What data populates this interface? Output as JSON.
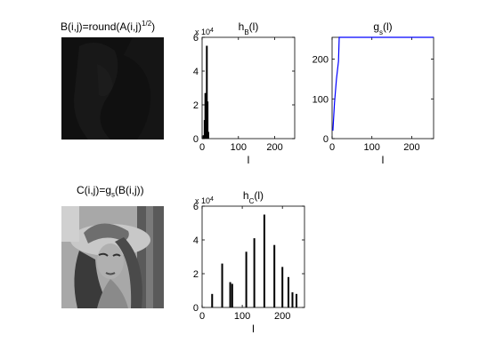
{
  "panels": {
    "img_b": {
      "title": "B(i,j)=round(A(i,j)",
      "title_sup": "1/2",
      "title_tail": ")"
    },
    "img_c": {
      "title": "C(i,j)=g",
      "title_sub": "s",
      "title_tail": "(B(i,j))"
    }
  },
  "chart_data": [
    {
      "type": "bar",
      "name": "hist_b",
      "title_main": "h",
      "title_sub": "B",
      "title_tail": "(l)",
      "multiplier_text": "x 10",
      "multiplier_exp": "4",
      "xlabel": "l",
      "xlim": [
        0,
        255
      ],
      "ylim": [
        0,
        6
      ],
      "xticks": [
        "0",
        "100",
        "200"
      ],
      "xtick_values": [
        0,
        100,
        200
      ],
      "yticks": [
        "0",
        "2",
        "4",
        "6"
      ],
      "ytick_values": [
        0,
        2,
        4,
        6
      ],
      "bars": [
        {
          "x": 4,
          "y": 0.2
        },
        {
          "x": 7,
          "y": 1.1
        },
        {
          "x": 9,
          "y": 2.7
        },
        {
          "x": 11,
          "y": 2.4
        },
        {
          "x": 13,
          "y": 5.5
        },
        {
          "x": 15,
          "y": 2.2
        },
        {
          "x": 17,
          "y": 0.4
        }
      ]
    },
    {
      "type": "line",
      "name": "transfer_gs",
      "title_main": "g",
      "title_sub": "s",
      "title_tail": "(l)",
      "xlabel": "l",
      "xlim": [
        0,
        255
      ],
      "ylim": [
        0,
        255
      ],
      "xticks": [
        "0",
        "100",
        "200"
      ],
      "xtick_values": [
        0,
        100,
        200
      ],
      "yticks": [
        "0",
        "100",
        "200"
      ],
      "ytick_values": [
        0,
        100,
        200
      ],
      "line_color": "#0000ff",
      "points": [
        [
          2,
          20
        ],
        [
          6,
          90
        ],
        [
          11,
          150
        ],
        [
          16,
          195
        ],
        [
          18,
          255
        ],
        [
          255,
          255
        ]
      ]
    },
    {
      "type": "bar",
      "name": "hist_c",
      "title_main": "h",
      "title_sub": "C",
      "title_tail": "(l)",
      "multiplier_text": "x 10",
      "multiplier_exp": "4",
      "xlabel": "l",
      "xlim": [
        0,
        255
      ],
      "ylim": [
        0,
        6
      ],
      "xticks": [
        "0",
        "100",
        "200"
      ],
      "xtick_values": [
        0,
        100,
        200
      ],
      "yticks": [
        "0",
        "2",
        "4",
        "6"
      ],
      "ytick_values": [
        0,
        2,
        4,
        6
      ],
      "bars": [
        {
          "x": 25,
          "y": 0.8
        },
        {
          "x": 50,
          "y": 2.6
        },
        {
          "x": 70,
          "y": 1.5
        },
        {
          "x": 75,
          "y": 1.4
        },
        {
          "x": 110,
          "y": 3.3
        },
        {
          "x": 130,
          "y": 4.1
        },
        {
          "x": 155,
          "y": 5.5
        },
        {
          "x": 180,
          "y": 3.7
        },
        {
          "x": 200,
          "y": 2.4
        },
        {
          "x": 215,
          "y": 1.8
        },
        {
          "x": 225,
          "y": 0.9
        },
        {
          "x": 235,
          "y": 0.8
        }
      ]
    }
  ]
}
